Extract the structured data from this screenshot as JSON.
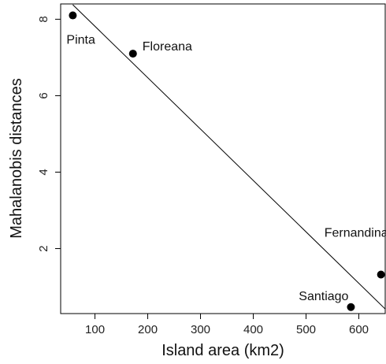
{
  "chart_data": {
    "type": "scatter",
    "title": "",
    "xlabel": "Island area (km2)",
    "ylabel": "Mahalanobis distances",
    "xlim": [
      35,
      650
    ],
    "ylim": [
      0.3,
      8.4
    ],
    "xticks": [
      100,
      200,
      300,
      400,
      500,
      600
    ],
    "yticks": [
      2,
      4,
      6,
      8
    ],
    "grid": false,
    "points": [
      {
        "label": "Pinta",
        "x": 58,
        "y": 8.1
      },
      {
        "label": "Floreana",
        "x": 172,
        "y": 7.1
      },
      {
        "label": "Fernandina",
        "x": 642,
        "y": 1.32
      },
      {
        "label": "Santiago",
        "x": 585,
        "y": 0.47
      }
    ],
    "trendline": {
      "x": [
        58,
        650
      ],
      "y": [
        8.38,
        0.42
      ]
    }
  }
}
